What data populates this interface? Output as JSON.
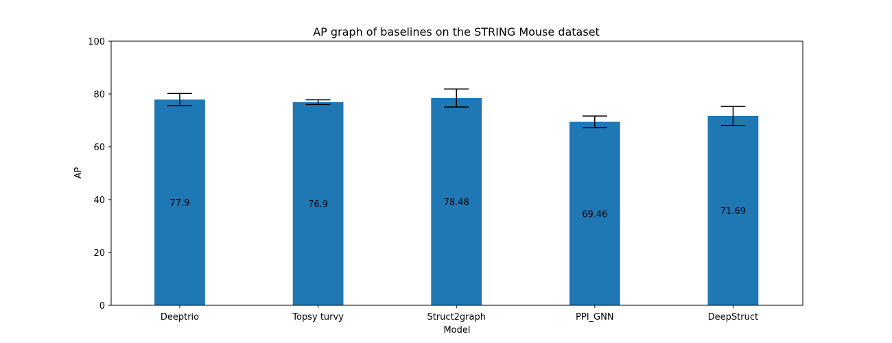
{
  "chart_data": {
    "type": "bar",
    "title": "AP graph of baselines on the STRING Mouse dataset",
    "xlabel": "Model",
    "ylabel": "AP",
    "ylim": [
      0,
      100
    ],
    "yticks": [
      0,
      20,
      40,
      60,
      80,
      100
    ],
    "categories": [
      "Deeptrio",
      "Topsy turvy",
      "Struct2graph",
      "PPI_GNN",
      "DeepStruct"
    ],
    "values": [
      77.9,
      76.9,
      78.48,
      69.46,
      71.69
    ],
    "value_labels": [
      "77.9",
      "76.9",
      "78.48",
      "69.46",
      "71.69"
    ],
    "errors": [
      2.3,
      0.9,
      3.4,
      2.2,
      3.6
    ],
    "bar_color": "#1f77b4",
    "grid": false,
    "legend": false
  }
}
